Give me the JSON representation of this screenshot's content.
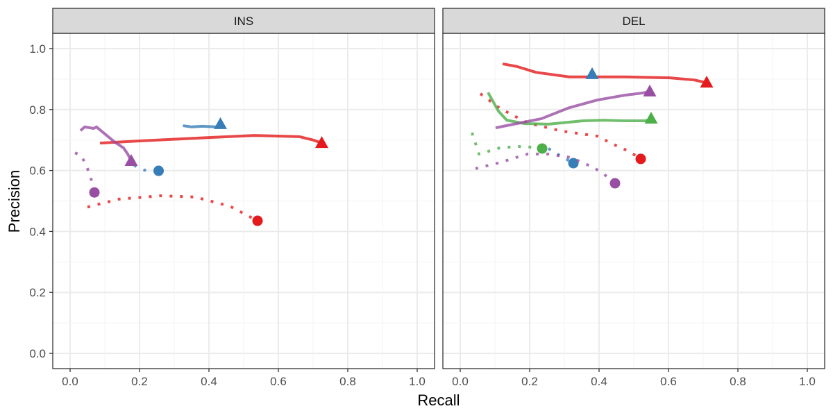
{
  "chart_data": {
    "type": "line",
    "xlabel": "Recall",
    "ylabel": "Precision",
    "xlim": [
      -0.05,
      1.05
    ],
    "ylim": [
      -0.05,
      1.05
    ],
    "xticks": [
      "0.0",
      "0.2",
      "0.4",
      "0.6",
      "0.8",
      "1.0"
    ],
    "yticks": [
      "0.0",
      "0.2",
      "0.4",
      "0.6",
      "0.8",
      "1.0"
    ],
    "grid": true,
    "colors": {
      "red": "#E41A1C",
      "blue": "#377EB8",
      "green": "#4DAF4A",
      "purple": "#984EA3"
    },
    "panels": [
      {
        "title": "INS",
        "series": [
          {
            "color": "red",
            "linetype": "solid",
            "end_marker": "triangle",
            "points": [
              [
                0.086,
                0.69
              ],
              [
                0.2,
                0.697
              ],
              [
                0.4,
                0.708
              ],
              [
                0.53,
                0.715
              ],
              [
                0.66,
                0.711
              ],
              [
                0.7,
                0.7
              ],
              [
                0.725,
                0.69
              ]
            ]
          },
          {
            "color": "red",
            "linetype": "dotted",
            "end_marker": "circle",
            "points": [
              [
                0.05,
                0.48
              ],
              [
                0.14,
                0.506
              ],
              [
                0.26,
                0.517
              ],
              [
                0.36,
                0.513
              ],
              [
                0.46,
                0.483
              ],
              [
                0.51,
                0.453
              ],
              [
                0.54,
                0.435
              ]
            ]
          },
          {
            "color": "blue",
            "linetype": "solid",
            "end_marker": "triangle",
            "points": [
              [
                0.325,
                0.747
              ],
              [
                0.35,
                0.743
              ],
              [
                0.38,
                0.745
              ],
              [
                0.42,
                0.743
              ],
              [
                0.433,
                0.752
              ]
            ]
          },
          {
            "color": "blue",
            "linetype": "dotted",
            "end_marker": "circle",
            "points": [
              [
                0.184,
                0.617
              ],
              [
                0.215,
                0.601
              ],
              [
                0.255,
                0.599
              ]
            ]
          },
          {
            "color": "purple",
            "linetype": "solid",
            "end_marker": "triangle",
            "points": [
              [
                0.03,
                0.731
              ],
              [
                0.042,
                0.743
              ],
              [
                0.068,
                0.738
              ],
              [
                0.076,
                0.743
              ],
              [
                0.1,
                0.72
              ],
              [
                0.13,
                0.692
              ],
              [
                0.154,
                0.674
              ],
              [
                0.166,
                0.654
              ],
              [
                0.176,
                0.631
              ]
            ]
          },
          {
            "color": "purple",
            "linetype": "dotted",
            "end_marker": "circle",
            "points": [
              [
                0.014,
                0.658
              ],
              [
                0.032,
                0.649
              ],
              [
                0.048,
                0.613
              ],
              [
                0.06,
                0.574
              ],
              [
                0.07,
                0.528
              ]
            ]
          }
        ]
      },
      {
        "title": "DEL",
        "series": [
          {
            "color": "red",
            "linetype": "solid",
            "end_marker": "triangle",
            "points": [
              [
                0.122,
                0.95
              ],
              [
                0.164,
                0.941
              ],
              [
                0.218,
                0.922
              ],
              [
                0.314,
                0.907
              ],
              [
                0.474,
                0.907
              ],
              [
                0.604,
                0.904
              ],
              [
                0.674,
                0.897
              ],
              [
                0.71,
                0.888
              ]
            ]
          },
          {
            "color": "red",
            "linetype": "dotted",
            "end_marker": "circle",
            "points": [
              [
                0.058,
                0.852
              ],
              [
                0.114,
                0.804
              ],
              [
                0.194,
                0.756
              ],
              [
                0.294,
                0.729
              ],
              [
                0.394,
                0.713
              ],
              [
                0.454,
                0.679
              ],
              [
                0.486,
                0.663
              ],
              [
                0.52,
                0.638
              ]
            ]
          },
          {
            "color": "blue",
            "linetype": "solid",
            "end_marker": "triangle",
            "points": [
              [
                0.38,
                0.916
              ]
            ]
          },
          {
            "color": "blue",
            "linetype": "dotted",
            "end_marker": "circle",
            "points": [
              [
                0.254,
                0.672
              ],
              [
                0.29,
                0.647
              ],
              [
                0.326,
                0.624
              ]
            ]
          },
          {
            "color": "green",
            "linetype": "solid",
            "end_marker": "triangle",
            "points": [
              [
                0.08,
                0.856
              ],
              [
                0.11,
                0.795
              ],
              [
                0.134,
                0.765
              ],
              [
                0.184,
                0.754
              ],
              [
                0.254,
                0.752
              ],
              [
                0.354,
                0.763
              ],
              [
                0.414,
                0.765
              ],
              [
                0.474,
                0.763
              ],
              [
                0.534,
                0.763
              ],
              [
                0.55,
                0.77
              ]
            ]
          },
          {
            "color": "green",
            "linetype": "dotted",
            "end_marker": "circle",
            "points": [
              [
                0.034,
                0.724
              ],
              [
                0.054,
                0.654
              ],
              [
                0.114,
                0.674
              ],
              [
                0.164,
                0.679
              ],
              [
                0.198,
                0.677
              ],
              [
                0.236,
                0.672
              ]
            ]
          },
          {
            "color": "purple",
            "linetype": "solid",
            "end_marker": "triangle",
            "points": [
              [
                0.102,
                0.74
              ],
              [
                0.234,
                0.77
              ],
              [
                0.314,
                0.806
              ],
              [
                0.394,
                0.831
              ],
              [
                0.474,
                0.847
              ],
              [
                0.524,
                0.854
              ],
              [
                0.546,
                0.859
              ]
            ]
          },
          {
            "color": "purple",
            "linetype": "dotted",
            "end_marker": "circle",
            "points": [
              [
                0.044,
                0.606
              ],
              [
                0.114,
                0.626
              ],
              [
                0.194,
                0.654
              ],
              [
                0.254,
                0.654
              ],
              [
                0.32,
                0.642
              ],
              [
                0.384,
                0.61
              ],
              [
                0.414,
                0.588
              ],
              [
                0.446,
                0.558
              ]
            ]
          }
        ]
      }
    ]
  }
}
